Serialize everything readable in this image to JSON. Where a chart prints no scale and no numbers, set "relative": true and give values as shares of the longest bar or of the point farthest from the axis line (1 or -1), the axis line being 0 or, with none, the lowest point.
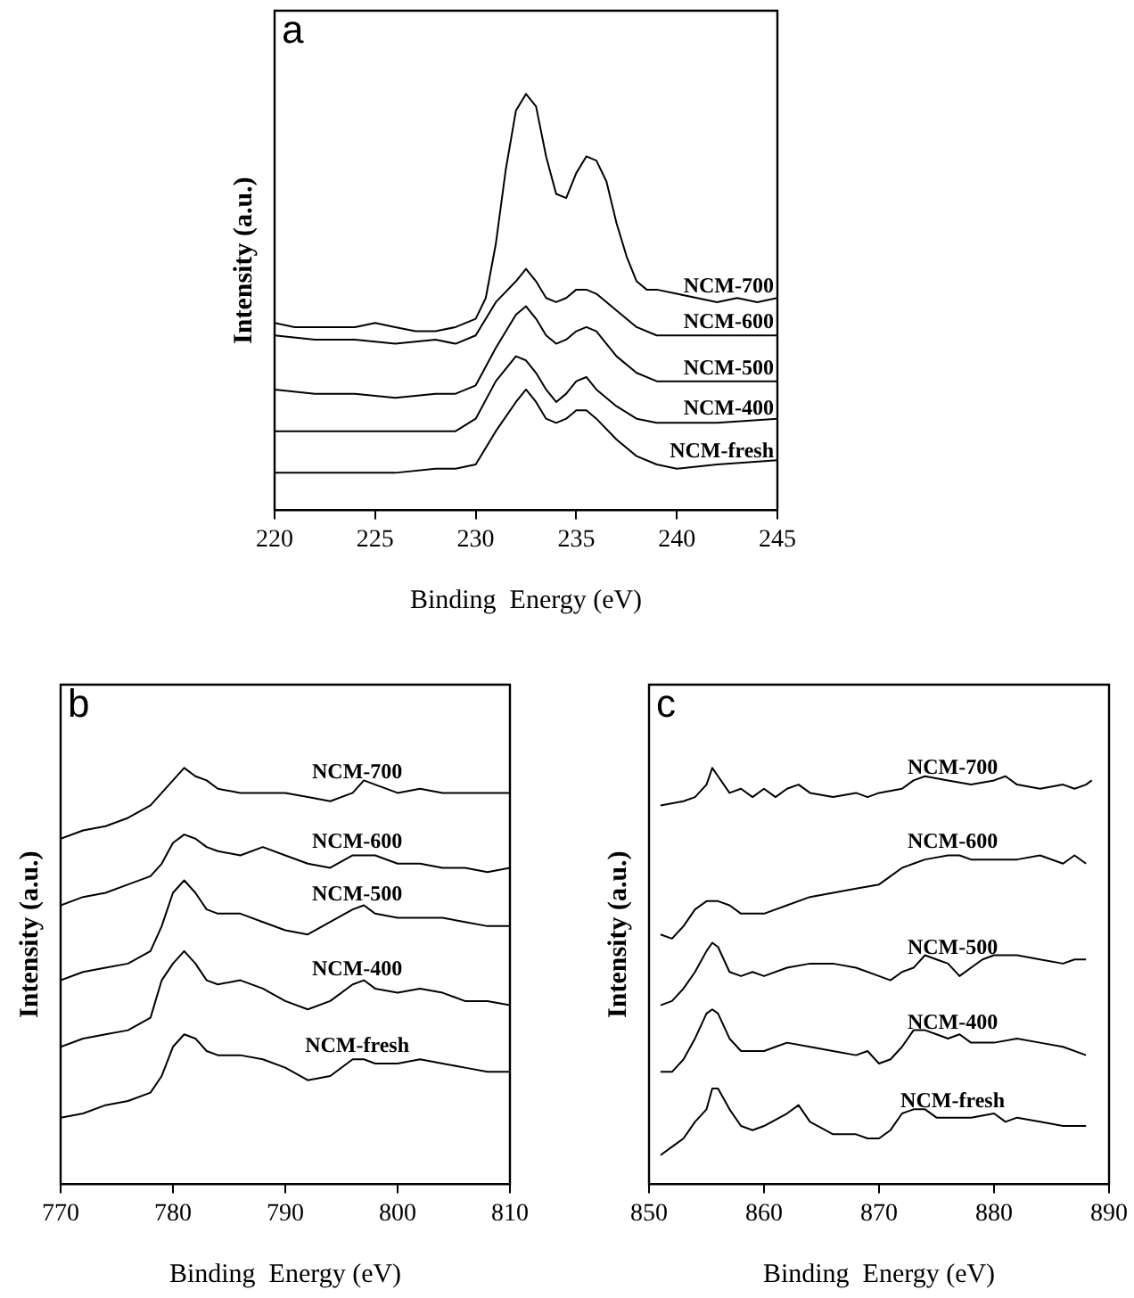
{
  "chart_data": [
    {
      "type": "line",
      "xlabel": "Binding  Energy (eV)",
      "ylabel": "Intensity (a.u.)",
      "relative": true,
      "xlim": [
        220,
        245
      ],
      "xticks": [
        220,
        225,
        230,
        235,
        240,
        245
      ],
      "grid": false,
      "legend": false,
      "annotations": [
        "a"
      ],
      "series": [
        {
          "name": "NCM-700",
          "color": "#000000",
          "x": [
            220,
            221,
            222,
            223,
            224,
            225,
            226,
            227,
            228,
            229,
            230,
            230.5,
            231,
            231.5,
            232,
            232.5,
            233,
            233.5,
            234,
            234.5,
            235,
            235.5,
            236,
            236.5,
            237,
            237.5,
            238,
            238.5,
            239,
            240,
            241,
            242,
            243,
            244,
            245
          ],
          "values": [
            0.45,
            0.44,
            0.44,
            0.44,
            0.44,
            0.45,
            0.44,
            0.43,
            0.43,
            0.44,
            0.46,
            0.51,
            0.64,
            0.82,
            0.96,
            1.0,
            0.97,
            0.85,
            0.76,
            0.75,
            0.81,
            0.85,
            0.84,
            0.79,
            0.69,
            0.61,
            0.55,
            0.53,
            0.53,
            0.52,
            0.51,
            0.5,
            0.51,
            0.5,
            0.51
          ]
        },
        {
          "name": "NCM-600",
          "color": "#000000",
          "x": [
            220,
            222,
            224,
            226,
            228,
            229,
            230,
            231,
            232,
            232.5,
            233,
            233.5,
            234,
            234.5,
            235,
            235.5,
            236,
            237,
            238,
            239,
            240,
            242,
            245
          ],
          "values": [
            0.42,
            0.41,
            0.41,
            0.4,
            0.41,
            0.4,
            0.42,
            0.5,
            0.55,
            0.58,
            0.55,
            0.51,
            0.5,
            0.51,
            0.53,
            0.53,
            0.52,
            0.48,
            0.44,
            0.42,
            0.42,
            0.42,
            0.42
          ]
        },
        {
          "name": "NCM-500",
          "color": "#000000",
          "x": [
            220,
            222,
            224,
            226,
            228,
            229,
            230,
            231,
            232,
            232.5,
            233,
            233.5,
            234,
            234.5,
            235,
            235.5,
            236,
            237,
            238,
            239,
            240,
            242,
            245
          ],
          "values": [
            0.29,
            0.28,
            0.28,
            0.27,
            0.28,
            0.28,
            0.3,
            0.39,
            0.47,
            0.49,
            0.46,
            0.42,
            0.4,
            0.41,
            0.43,
            0.44,
            0.43,
            0.37,
            0.33,
            0.31,
            0.31,
            0.31,
            0.31
          ]
        },
        {
          "name": "NCM-400",
          "color": "#000000",
          "x": [
            220,
            222,
            224,
            226,
            228,
            229,
            230,
            231,
            232,
            232.5,
            233,
            233.5,
            234,
            234.5,
            235,
            235.5,
            236,
            237,
            238,
            239,
            240,
            242,
            245
          ],
          "values": [
            0.19,
            0.19,
            0.19,
            0.19,
            0.19,
            0.19,
            0.22,
            0.31,
            0.37,
            0.36,
            0.33,
            0.29,
            0.26,
            0.28,
            0.31,
            0.32,
            0.29,
            0.25,
            0.22,
            0.21,
            0.21,
            0.21,
            0.22
          ]
        },
        {
          "name": "NCM-fresh",
          "color": "#000000",
          "x": [
            220,
            222,
            224,
            226,
            228,
            229,
            230,
            231,
            232,
            232.5,
            233,
            233.5,
            234,
            234.5,
            235,
            235.5,
            236,
            237,
            238,
            239,
            240,
            242,
            245
          ],
          "values": [
            0.09,
            0.09,
            0.09,
            0.09,
            0.1,
            0.1,
            0.11,
            0.19,
            0.26,
            0.29,
            0.26,
            0.22,
            0.21,
            0.22,
            0.24,
            0.24,
            0.22,
            0.17,
            0.13,
            0.11,
            0.1,
            0.11,
            0.12
          ]
        }
      ]
    },
    {
      "type": "line",
      "xlabel": "Binding  Energy (eV)",
      "ylabel": "Intensity (a.u.)",
      "relative": true,
      "xlim": [
        770,
        810
      ],
      "xticks": [
        770,
        780,
        790,
        800,
        810
      ],
      "grid": false,
      "legend": false,
      "annotations": [
        "b"
      ],
      "series": [
        {
          "name": "NCM-700",
          "color": "#000000",
          "x": [
            770,
            772,
            774,
            776,
            778,
            779,
            780,
            781,
            782,
            783,
            784,
            786,
            788,
            790,
            792,
            794,
            796,
            797,
            798,
            800,
            802,
            804,
            806,
            808,
            810
          ],
          "values": [
            0.83,
            0.85,
            0.86,
            0.88,
            0.91,
            0.94,
            0.97,
            1.0,
            0.98,
            0.97,
            0.95,
            0.94,
            0.94,
            0.94,
            0.93,
            0.92,
            0.94,
            0.97,
            0.96,
            0.94,
            0.95,
            0.94,
            0.94,
            0.94,
            0.94
          ]
        },
        {
          "name": "NCM-600",
          "color": "#000000",
          "x": [
            770,
            772,
            774,
            776,
            778,
            779,
            780,
            781,
            782,
            783,
            784,
            786,
            788,
            790,
            792,
            794,
            796,
            797,
            798,
            800,
            802,
            804,
            806,
            808,
            810
          ],
          "values": [
            0.67,
            0.69,
            0.7,
            0.72,
            0.74,
            0.77,
            0.82,
            0.84,
            0.83,
            0.81,
            0.8,
            0.79,
            0.81,
            0.79,
            0.77,
            0.76,
            0.79,
            0.79,
            0.79,
            0.77,
            0.77,
            0.76,
            0.76,
            0.75,
            0.76
          ]
        },
        {
          "name": "NCM-500",
          "color": "#000000",
          "x": [
            770,
            772,
            774,
            776,
            778,
            779,
            780,
            781,
            782,
            783,
            784,
            786,
            788,
            790,
            792,
            794,
            796,
            797,
            798,
            800,
            802,
            804,
            806,
            808,
            810
          ],
          "values": [
            0.49,
            0.51,
            0.52,
            0.53,
            0.56,
            0.62,
            0.7,
            0.73,
            0.7,
            0.66,
            0.65,
            0.65,
            0.63,
            0.61,
            0.6,
            0.63,
            0.66,
            0.67,
            0.65,
            0.64,
            0.64,
            0.64,
            0.63,
            0.62,
            0.62
          ]
        },
        {
          "name": "NCM-400",
          "color": "#000000",
          "x": [
            770,
            772,
            774,
            776,
            778,
            779,
            780,
            781,
            782,
            783,
            784,
            786,
            788,
            790,
            792,
            794,
            796,
            797,
            798,
            800,
            802,
            804,
            806,
            808,
            810
          ],
          "values": [
            0.33,
            0.35,
            0.36,
            0.37,
            0.4,
            0.49,
            0.53,
            0.56,
            0.53,
            0.49,
            0.48,
            0.49,
            0.47,
            0.44,
            0.42,
            0.44,
            0.48,
            0.49,
            0.47,
            0.46,
            0.47,
            0.46,
            0.44,
            0.44,
            0.43
          ]
        },
        {
          "name": "NCM-fresh",
          "color": "#000000",
          "x": [
            770,
            772,
            774,
            776,
            778,
            779,
            780,
            781,
            782,
            783,
            784,
            786,
            788,
            790,
            792,
            794,
            796,
            797,
            798,
            800,
            802,
            804,
            806,
            808,
            810
          ],
          "values": [
            0.16,
            0.17,
            0.19,
            0.2,
            0.22,
            0.26,
            0.33,
            0.36,
            0.35,
            0.32,
            0.31,
            0.31,
            0.3,
            0.28,
            0.25,
            0.26,
            0.3,
            0.3,
            0.29,
            0.29,
            0.3,
            0.29,
            0.28,
            0.27,
            0.27
          ]
        }
      ]
    },
    {
      "type": "line",
      "xlabel": "Binding  Energy (eV)",
      "ylabel": "Intensity (a.u.)",
      "relative": true,
      "xlim": [
        850,
        890
      ],
      "xticks": [
        850,
        860,
        870,
        880,
        890
      ],
      "grid": false,
      "legend": false,
      "annotations": [
        "c"
      ],
      "series": [
        {
          "name": "NCM-700",
          "color": "#000000",
          "x": [
            851,
            853,
            854,
            855,
            855.5,
            856,
            857,
            858,
            859,
            860,
            861,
            862,
            863,
            864,
            866,
            868,
            869,
            870,
            872,
            873,
            874,
            876,
            878,
            880,
            881,
            882,
            884,
            886,
            887,
            888,
            888.5
          ],
          "values": [
            0.91,
            0.92,
            0.93,
            0.96,
            1.0,
            0.98,
            0.94,
            0.95,
            0.93,
            0.95,
            0.93,
            0.95,
            0.96,
            0.94,
            0.93,
            0.94,
            0.93,
            0.94,
            0.95,
            0.97,
            0.98,
            0.97,
            0.96,
            0.97,
            0.98,
            0.96,
            0.95,
            0.96,
            0.95,
            0.96,
            0.97
          ]
        },
        {
          "name": "NCM-600",
          "color": "#000000",
          "x": [
            851,
            852,
            853,
            854,
            855,
            856,
            857,
            858,
            859,
            860,
            862,
            864,
            866,
            868,
            870,
            871,
            872,
            873,
            874,
            876,
            877,
            878,
            880,
            882,
            884,
            886,
            887,
            888
          ],
          "values": [
            0.6,
            0.59,
            0.62,
            0.66,
            0.68,
            0.68,
            0.67,
            0.65,
            0.65,
            0.65,
            0.67,
            0.69,
            0.7,
            0.71,
            0.72,
            0.74,
            0.76,
            0.77,
            0.78,
            0.79,
            0.79,
            0.78,
            0.78,
            0.78,
            0.79,
            0.77,
            0.79,
            0.77
          ]
        },
        {
          "name": "NCM-500",
          "color": "#000000",
          "x": [
            851,
            852,
            853,
            854,
            855,
            855.5,
            856,
            857,
            858,
            859,
            860,
            862,
            864,
            866,
            868,
            870,
            871,
            872,
            873,
            874,
            875,
            876,
            877,
            878,
            879,
            880,
            882,
            884,
            886,
            887,
            888
          ],
          "values": [
            0.43,
            0.44,
            0.47,
            0.51,
            0.56,
            0.58,
            0.57,
            0.51,
            0.5,
            0.51,
            0.5,
            0.52,
            0.53,
            0.53,
            0.52,
            0.5,
            0.49,
            0.51,
            0.52,
            0.55,
            0.54,
            0.53,
            0.5,
            0.52,
            0.54,
            0.55,
            0.55,
            0.54,
            0.53,
            0.54,
            0.54
          ]
        },
        {
          "name": "NCM-400",
          "color": "#000000",
          "x": [
            851,
            852,
            853,
            854,
            855,
            855.5,
            856,
            857,
            858,
            859,
            860,
            861,
            862,
            864,
            866,
            868,
            869,
            870,
            871,
            872,
            873,
            874,
            875,
            876,
            877,
            878,
            880,
            882,
            884,
            886,
            888
          ],
          "values": [
            0.27,
            0.27,
            0.3,
            0.35,
            0.41,
            0.42,
            0.41,
            0.35,
            0.32,
            0.32,
            0.32,
            0.33,
            0.34,
            0.33,
            0.32,
            0.31,
            0.32,
            0.29,
            0.3,
            0.33,
            0.37,
            0.37,
            0.36,
            0.35,
            0.36,
            0.34,
            0.34,
            0.35,
            0.34,
            0.33,
            0.31
          ]
        },
        {
          "name": "NCM-fresh",
          "color": "#000000",
          "x": [
            851,
            852,
            853,
            854,
            855,
            855.5,
            856,
            857,
            858,
            859,
            860,
            862,
            863,
            864,
            866,
            868,
            869,
            870,
            871,
            872,
            873,
            874,
            875,
            876,
            878,
            880,
            881,
            882,
            884,
            886,
            888
          ],
          "values": [
            0.07,
            0.09,
            0.11,
            0.15,
            0.18,
            0.23,
            0.23,
            0.18,
            0.14,
            0.13,
            0.14,
            0.17,
            0.19,
            0.15,
            0.12,
            0.12,
            0.11,
            0.11,
            0.13,
            0.17,
            0.18,
            0.18,
            0.16,
            0.16,
            0.16,
            0.17,
            0.15,
            0.16,
            0.15,
            0.14,
            0.14
          ]
        }
      ]
    }
  ]
}
